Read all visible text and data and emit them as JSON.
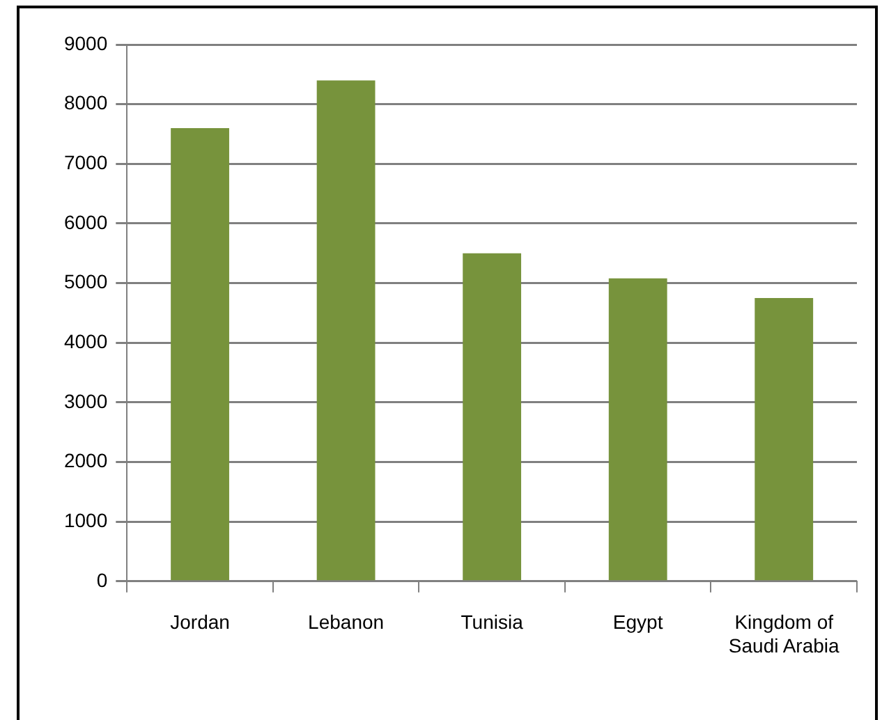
{
  "chart_data": {
    "type": "bar",
    "categories": [
      "Jordan",
      "Lebanon",
      "Tunisia",
      "Egypt",
      "Kingdom of Saudi Arabia"
    ],
    "values": [
      7600,
      8400,
      5500,
      5080,
      4750
    ],
    "color": "#77933c",
    "ylim": [
      0,
      9000
    ],
    "yticks": [
      0,
      1000,
      2000,
      3000,
      4000,
      5000,
      6000,
      7000,
      8000,
      9000
    ],
    "grid": "y",
    "legend": false
  }
}
